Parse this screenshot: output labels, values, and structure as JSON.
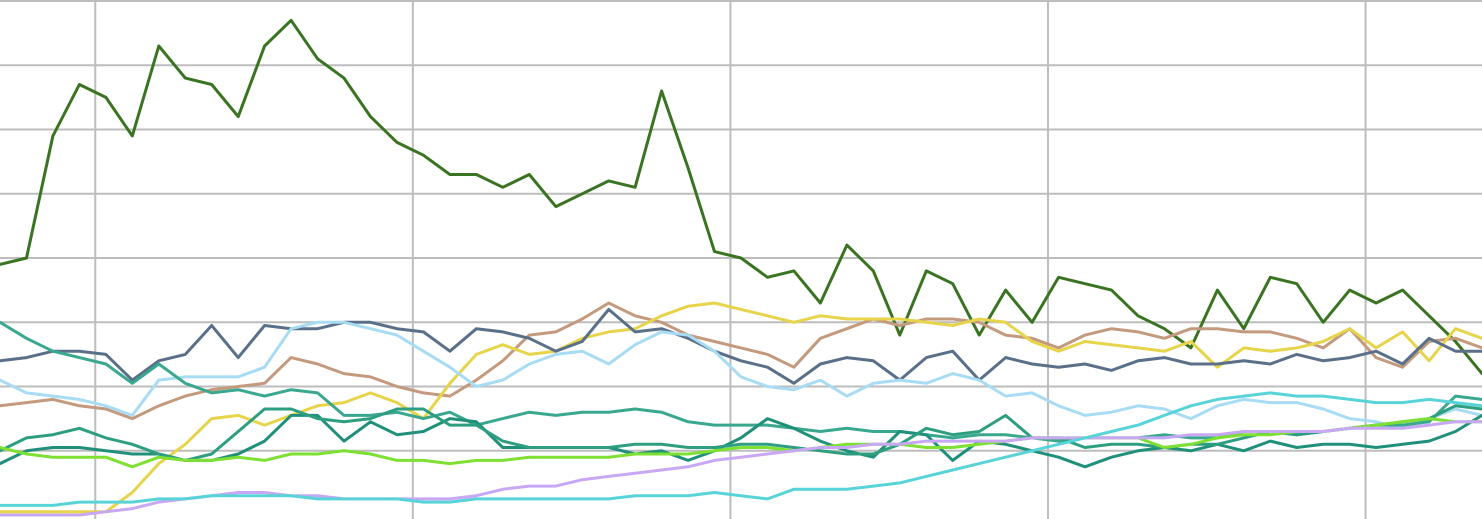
{
  "chart_data": {
    "type": "line",
    "title": "",
    "xlabel": "",
    "ylabel": "",
    "grid": true,
    "legend": "none",
    "xlim": [
      0,
      56
    ],
    "ylim": [
      0,
      8
    ],
    "x_gridlines": [
      3.6,
      15.6,
      27.6,
      39.6,
      51.6
    ],
    "y_gridlines": [
      1,
      2,
      3,
      4,
      5,
      6,
      7,
      8
    ],
    "x": [
      0,
      1,
      2,
      3,
      4,
      5,
      6,
      7,
      8,
      9,
      10,
      11,
      12,
      13,
      14,
      15,
      16,
      17,
      18,
      19,
      20,
      21,
      22,
      23,
      24,
      25,
      26,
      27,
      28,
      29,
      30,
      31,
      32,
      33,
      34,
      35,
      36,
      37,
      38,
      39,
      40,
      41,
      42,
      43,
      44,
      45,
      46,
      47,
      48,
      49,
      50,
      51,
      52,
      53,
      54,
      55,
      56
    ],
    "series": [
      {
        "color": "#3a7422",
        "values": [
          3.9,
          4,
          5.9,
          6.7,
          6.5,
          5.9,
          7.3,
          6.8,
          6.7,
          6.2,
          7.3,
          7.7,
          7.1,
          6.8,
          6.2,
          5.8,
          5.6,
          5.3,
          5.3,
          5.1,
          5.3,
          4.8,
          5.0,
          5.2,
          5.1,
          6.6,
          5.4,
          4.1,
          4.0,
          3.7,
          3.8,
          3.3,
          4.2,
          3.8,
          2.8,
          3.8,
          3.6,
          2.8,
          3.5,
          3.0,
          3.7,
          3.6,
          3.5,
          3.1,
          2.9,
          2.6,
          3.5,
          2.9,
          3.7,
          3.6,
          3.0,
          3.5,
          3.3,
          3.5,
          3.1,
          2.7,
          2.2
        ]
      },
      {
        "color": "#c49a7e",
        "values": [
          1.7,
          1.75,
          1.8,
          1.7,
          1.65,
          1.5,
          1.7,
          1.85,
          1.95,
          2.0,
          2.05,
          2.45,
          2.35,
          2.2,
          2.15,
          2.0,
          1.9,
          1.85,
          2.1,
          2.4,
          2.8,
          2.85,
          3.05,
          3.3,
          3.1,
          3.0,
          2.8,
          2.7,
          2.6,
          2.5,
          2.3,
          2.75,
          2.9,
          3.05,
          2.95,
          3.05,
          3.05,
          3.0,
          2.8,
          2.75,
          2.6,
          2.8,
          2.9,
          2.85,
          2.75,
          2.9,
          2.9,
          2.85,
          2.85,
          2.75,
          2.6,
          2.9,
          2.45,
          2.3,
          2.7,
          2.75,
          2.6
        ]
      },
      {
        "color": "#e6d44a",
        "values": [
          0.05,
          0.05,
          0.05,
          0.05,
          0.05,
          0.35,
          0.8,
          1.1,
          1.5,
          1.55,
          1.4,
          1.55,
          1.7,
          1.75,
          1.9,
          1.75,
          1.5,
          2.05,
          2.5,
          2.65,
          2.5,
          2.55,
          2.75,
          2.85,
          2.9,
          3.1,
          3.25,
          3.3,
          3.2,
          3.1,
          3.0,
          3.1,
          3.05,
          3.05,
          3.05,
          3.0,
          2.95,
          3.05,
          3.0,
          2.7,
          2.55,
          2.7,
          2.65,
          2.6,
          2.55,
          2.7,
          2.3,
          2.6,
          2.55,
          2.6,
          2.7,
          2.9,
          2.6,
          2.85,
          2.4,
          2.9,
          2.75
        ]
      },
      {
        "color": "#5a7088",
        "values": [
          2.4,
          2.45,
          2.55,
          2.55,
          2.5,
          2.1,
          2.4,
          2.5,
          2.95,
          2.45,
          2.95,
          2.9,
          2.9,
          3.0,
          3.0,
          2.9,
          2.85,
          2.55,
          2.9,
          2.85,
          2.75,
          2.55,
          2.7,
          3.2,
          2.85,
          2.9,
          2.75,
          2.55,
          2.4,
          2.3,
          2.05,
          2.35,
          2.45,
          2.4,
          2.1,
          2.45,
          2.55,
          2.1,
          2.45,
          2.35,
          2.3,
          2.35,
          2.25,
          2.4,
          2.45,
          2.35,
          2.35,
          2.4,
          2.35,
          2.5,
          2.4,
          2.45,
          2.55,
          2.35,
          2.75,
          2.55,
          2.55
        ]
      },
      {
        "color": "#a8dcf4",
        "values": [
          2.1,
          1.9,
          1.85,
          1.8,
          1.7,
          1.55,
          2.1,
          2.15,
          2.15,
          2.15,
          2.3,
          2.9,
          3.0,
          3.0,
          2.9,
          2.8,
          2.55,
          2.3,
          2.0,
          2.1,
          2.35,
          2.5,
          2.55,
          2.35,
          2.65,
          2.85,
          2.8,
          2.55,
          2.15,
          2.0,
          1.95,
          2.1,
          1.85,
          2.05,
          2.1,
          2.05,
          2.2,
          2.1,
          1.85,
          1.9,
          1.7,
          1.55,
          1.6,
          1.7,
          1.65,
          1.5,
          1.7,
          1.8,
          1.75,
          1.75,
          1.65,
          1.5,
          1.45,
          1.35,
          1.5,
          1.65,
          1.55
        ]
      },
      {
        "color": "#3aa88e",
        "values": [
          3.0,
          2.75,
          2.55,
          2.45,
          2.35,
          2.05,
          2.35,
          2.05,
          1.9,
          1.95,
          1.85,
          1.95,
          1.9,
          1.55,
          1.55,
          1.6,
          1.5,
          1.6,
          1.4,
          1.5,
          1.6,
          1.55,
          1.6,
          1.6,
          1.65,
          1.6,
          1.45,
          1.4,
          1.4,
          1.4,
          1.35,
          1.3,
          1.35,
          1.3,
          1.3,
          1.25,
          1.2,
          1.25,
          1.25,
          1.2,
          1.15,
          1.2,
          1.2,
          1.2,
          1.25,
          1.2,
          1.2,
          1.3,
          1.3,
          1.25,
          1.3,
          1.35,
          1.4,
          1.4,
          1.45,
          1.85,
          1.8
        ]
      },
      {
        "color": "#20907a",
        "values": [
          0.8,
          1.0,
          1.05,
          1.05,
          1.0,
          0.95,
          0.95,
          0.85,
          0.85,
          0.95,
          1.15,
          1.55,
          1.55,
          1.15,
          1.45,
          1.25,
          1.3,
          1.5,
          1.45,
          1.05,
          1.05,
          1.05,
          1.05,
          1.05,
          0.95,
          1.0,
          0.85,
          1.0,
          1.2,
          1.5,
          1.35,
          1.15,
          1.0,
          0.9,
          1.3,
          1.25,
          0.85,
          1.15,
          1.1,
          1.0,
          0.9,
          0.75,
          0.9,
          1.0,
          1.05,
          1.0,
          1.1,
          1.0,
          1.15,
          1.05,
          1.1,
          1.1,
          1.05,
          1.1,
          1.15,
          1.3,
          1.55
        ]
      },
      {
        "color": "#2e9e80",
        "values": [
          1.0,
          1.2,
          1.25,
          1.35,
          1.2,
          1.1,
          0.95,
          0.85,
          0.95,
          1.3,
          1.65,
          1.65,
          1.5,
          1.45,
          1.5,
          1.65,
          1.65,
          1.4,
          1.4,
          1.15,
          1.05,
          1.05,
          1.05,
          1.05,
          1.1,
          1.1,
          1.05,
          1.05,
          1.1,
          1.1,
          1.05,
          1.0,
          0.95,
          0.95,
          1.1,
          1.35,
          1.25,
          1.3,
          1.55,
          1.2,
          1.2,
          1.05,
          1.1,
          1.1,
          1.05,
          1.1,
          1.1,
          1.2,
          1.3,
          1.25,
          1.3,
          1.35,
          1.4,
          1.45,
          1.5,
          1.7,
          1.65
        ]
      },
      {
        "color": "#7ee032",
        "values": [
          1.05,
          0.95,
          0.9,
          0.9,
          0.9,
          0.75,
          0.9,
          0.85,
          0.85,
          0.9,
          0.85,
          0.95,
          0.95,
          1.0,
          0.95,
          0.85,
          0.85,
          0.8,
          0.85,
          0.85,
          0.9,
          0.9,
          0.9,
          0.9,
          0.95,
          0.95,
          0.95,
          1.0,
          1.05,
          1.05,
          1.0,
          1.05,
          1.1,
          1.1,
          1.1,
          1.05,
          1.05,
          1.1,
          1.15,
          1.2,
          1.2,
          1.2,
          1.2,
          1.2,
          1.05,
          1.1,
          1.2,
          1.25,
          1.25,
          1.3,
          1.3,
          1.35,
          1.4,
          1.45,
          1.5,
          1.45,
          1.45
        ]
      },
      {
        "color": "#c8a8f4",
        "values": [
          0.0,
          0.0,
          0.0,
          0.0,
          0.05,
          0.1,
          0.2,
          0.25,
          0.3,
          0.35,
          0.35,
          0.3,
          0.3,
          0.25,
          0.25,
          0.25,
          0.25,
          0.25,
          0.3,
          0.4,
          0.45,
          0.45,
          0.55,
          0.6,
          0.65,
          0.7,
          0.75,
          0.85,
          0.9,
          0.95,
          1.0,
          1.05,
          1.05,
          1.1,
          1.1,
          1.15,
          1.15,
          1.15,
          1.15,
          1.2,
          1.2,
          1.2,
          1.2,
          1.2,
          1.2,
          1.25,
          1.25,
          1.3,
          1.3,
          1.3,
          1.3,
          1.35,
          1.35,
          1.35,
          1.4,
          1.45,
          1.45
        ]
      },
      {
        "color": "#58d4d8",
        "values": [
          0.15,
          0.15,
          0.15,
          0.2,
          0.2,
          0.2,
          0.25,
          0.25,
          0.3,
          0.3,
          0.3,
          0.3,
          0.25,
          0.25,
          0.25,
          0.25,
          0.2,
          0.2,
          0.25,
          0.25,
          0.25,
          0.25,
          0.25,
          0.25,
          0.3,
          0.3,
          0.3,
          0.35,
          0.3,
          0.25,
          0.4,
          0.4,
          0.4,
          0.45,
          0.5,
          0.6,
          0.7,
          0.8,
          0.9,
          1.0,
          1.1,
          1.2,
          1.3,
          1.4,
          1.55,
          1.7,
          1.8,
          1.85,
          1.9,
          1.85,
          1.85,
          1.8,
          1.75,
          1.75,
          1.8,
          1.75,
          1.7
        ]
      }
    ]
  }
}
